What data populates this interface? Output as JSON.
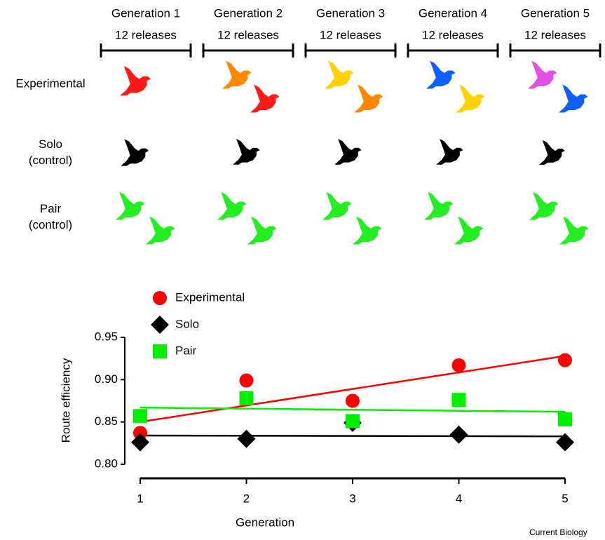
{
  "diagram": {
    "generations": [
      {
        "title": "Generation 1",
        "releases": "12 releases"
      },
      {
        "title": "Generation 2",
        "releases": "12 releases"
      },
      {
        "title": "Generation 3",
        "releases": "12 releases"
      },
      {
        "title": "Generation 4",
        "releases": "12 releases"
      },
      {
        "title": "Generation 5",
        "releases": "12 releases"
      }
    ],
    "rows": [
      [
        "Experimental"
      ],
      [
        "Solo",
        "(control)"
      ],
      [
        "Pair",
        "(control)"
      ]
    ]
  },
  "chart_data": {
    "type": "scatter",
    "x": [
      1,
      2,
      3,
      4,
      5
    ],
    "xlim": [
      1,
      5
    ],
    "xticks": [
      1,
      2,
      3,
      4,
      5
    ],
    "ylim": [
      0.8,
      0.95
    ],
    "yticks": [
      {
        "value": 0.8,
        "label": "0.80"
      },
      0.85,
      {
        "value": 0.9,
        "label": "0.90"
      },
      0.95
    ],
    "x_label": "Generation",
    "y_label": "Route efficiency",
    "series": [
      {
        "name": "Experimental",
        "color": "#ff0000",
        "marker": "circle",
        "values": [
          0.837,
          0.899,
          0.875,
          0.917,
          0.923
        ],
        "trend": [
          0.85,
          0.928
        ]
      },
      {
        "name": "Solo",
        "color": "#000000",
        "marker": "diamond",
        "values": [
          0.826,
          0.83,
          0.849,
          0.835,
          0.826
        ],
        "trend": [
          0.834,
          0.833
        ]
      },
      {
        "name": "Pair",
        "color": "#00ee00",
        "marker": "square",
        "values": [
          0.857,
          0.878,
          0.851,
          0.876,
          0.853
        ],
        "trend": [
          0.867,
          0.862
        ]
      }
    ],
    "credit": "Current Biology"
  }
}
